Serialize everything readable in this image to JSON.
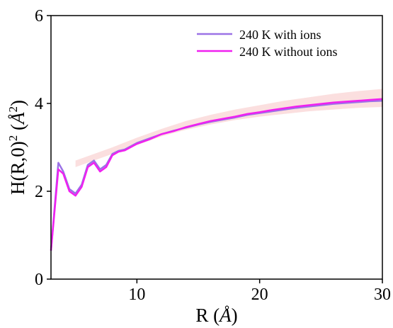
{
  "chart_data": {
    "type": "line",
    "xlabel_prefix": "R (",
    "xlabel_unit": "Å",
    "xlabel_suffix": ")",
    "ylabel_prefix": "H(R,0)",
    "ylabel_exp": "2",
    "ylabel_open": " (",
    "ylabel_unit": "Å",
    "ylabel_unit_exp": "2",
    "ylabel_close": ")",
    "xlim": [
      3,
      30
    ],
    "ylim": [
      0,
      6
    ],
    "xticks": [
      10,
      20,
      30
    ],
    "yticks": [
      0,
      2,
      4,
      6
    ],
    "grid": false,
    "legend_position": "top-right",
    "band": {
      "color": "#f6b8b8",
      "opacity": 0.45,
      "x": [
        5,
        8,
        10,
        12,
        14,
        16,
        18,
        20,
        22,
        24,
        26,
        28,
        30
      ],
      "lower": [
        2.55,
        2.85,
        3.05,
        3.25,
        3.4,
        3.52,
        3.62,
        3.7,
        3.76,
        3.82,
        3.86,
        3.9,
        3.92
      ],
      "upper": [
        2.7,
        3.0,
        3.22,
        3.42,
        3.6,
        3.74,
        3.86,
        3.96,
        4.06,
        4.14,
        4.22,
        4.28,
        4.33
      ]
    },
    "series": [
      {
        "name": "240 K with ions",
        "color": "#9b72e6",
        "x": [
          3,
          3.6,
          4.0,
          4.5,
          5.0,
          5.5,
          6.0,
          6.5,
          7.0,
          7.5,
          8.0,
          8.5,
          9.0,
          10,
          11,
          12,
          13,
          14,
          15,
          16,
          17,
          18,
          19,
          20,
          21,
          22,
          23,
          24,
          25,
          26,
          27,
          28,
          29,
          30
        ],
        "values": [
          0.65,
          2.65,
          2.45,
          2.05,
          1.95,
          2.15,
          2.6,
          2.7,
          2.5,
          2.6,
          2.85,
          2.92,
          2.95,
          3.1,
          3.2,
          3.3,
          3.38,
          3.45,
          3.52,
          3.58,
          3.63,
          3.68,
          3.74,
          3.78,
          3.82,
          3.86,
          3.9,
          3.93,
          3.96,
          3.99,
          4.01,
          4.03,
          4.05,
          4.06
        ]
      },
      {
        "name": "240 K without ions",
        "color": "#f020f0",
        "x": [
          3,
          3.6,
          4.0,
          4.5,
          5.0,
          5.5,
          6.0,
          6.5,
          7.0,
          7.5,
          8.0,
          8.5,
          9.0,
          10,
          11,
          12,
          13,
          14,
          15,
          16,
          17,
          18,
          19,
          20,
          21,
          22,
          23,
          24,
          25,
          26,
          27,
          28,
          29,
          30
        ],
        "values": [
          0.65,
          2.5,
          2.4,
          2.0,
          1.9,
          2.1,
          2.55,
          2.65,
          2.45,
          2.55,
          2.82,
          2.9,
          2.93,
          3.08,
          3.18,
          3.3,
          3.37,
          3.46,
          3.53,
          3.6,
          3.65,
          3.7,
          3.76,
          3.8,
          3.85,
          3.89,
          3.93,
          3.96,
          3.99,
          4.02,
          4.04,
          4.06,
          4.08,
          4.1
        ]
      }
    ]
  }
}
